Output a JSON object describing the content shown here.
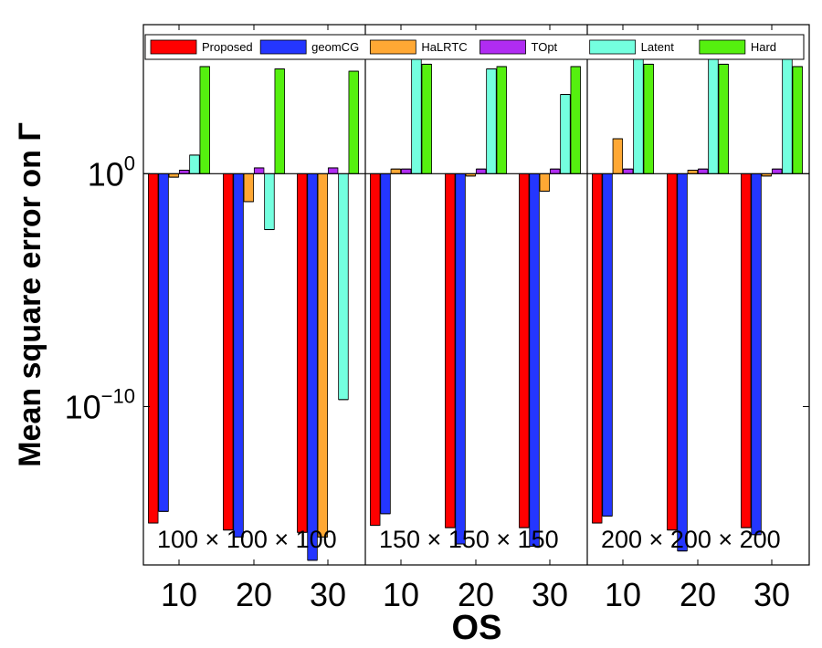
{
  "chart_data": {
    "type": "bar",
    "scale": "log",
    "xlabel": "OS",
    "ylabel": "Mean square error on Γ",
    "yticks": [
      {
        "exp": 0,
        "base": "10",
        "sup": "0"
      },
      {
        "exp": -10,
        "base": "10",
        "sup": "−10"
      }
    ],
    "ylim_exp": [
      -16.8,
      6.4
    ],
    "baseline_exp": 0,
    "legend": {
      "position": "top"
    },
    "series": [
      {
        "name": "Proposed",
        "color": "#ff0000"
      },
      {
        "name": "geomCG",
        "color": "#2436ff"
      },
      {
        "name": "HaLRTC",
        "color": "#ffa834"
      },
      {
        "name": "TOpt",
        "color": "#b02cf2"
      },
      {
        "name": "Latent",
        "color": "#74ffdf"
      },
      {
        "name": "Hard",
        "color": "#55f00f"
      }
    ],
    "panels": [
      {
        "label": "100 × 100 × 100",
        "categories": [
          "10",
          "20",
          "30"
        ],
        "values": [
          [
            -15.0,
            -14.5,
            -0.15,
            0.15,
            0.8,
            4.6
          ],
          [
            -15.3,
            -15.6,
            -1.2,
            0.25,
            -2.4,
            4.5
          ],
          [
            -15.4,
            -16.6,
            -15.6,
            0.25,
            -9.7,
            4.4
          ]
        ]
      },
      {
        "label": "150 × 150 × 150",
        "categories": [
          "10",
          "20",
          "30"
        ],
        "values": [
          [
            -15.1,
            -14.6,
            0.2,
            0.2,
            5.3,
            4.7
          ],
          [
            -15.2,
            -15.9,
            -0.1,
            0.2,
            4.5,
            4.6
          ],
          [
            -15.2,
            -16.0,
            -0.75,
            0.2,
            3.4,
            4.6
          ]
        ]
      },
      {
        "label": "200 × 200 × 200",
        "categories": [
          "10",
          "20",
          "30"
        ],
        "values": [
          [
            -15.0,
            -14.7,
            1.5,
            0.2,
            5.6,
            4.7
          ],
          [
            -15.3,
            -16.2,
            0.15,
            0.2,
            5.4,
            4.7
          ],
          [
            -15.2,
            -15.5,
            -0.1,
            0.2,
            5.2,
            4.6
          ]
        ]
      }
    ]
  }
}
